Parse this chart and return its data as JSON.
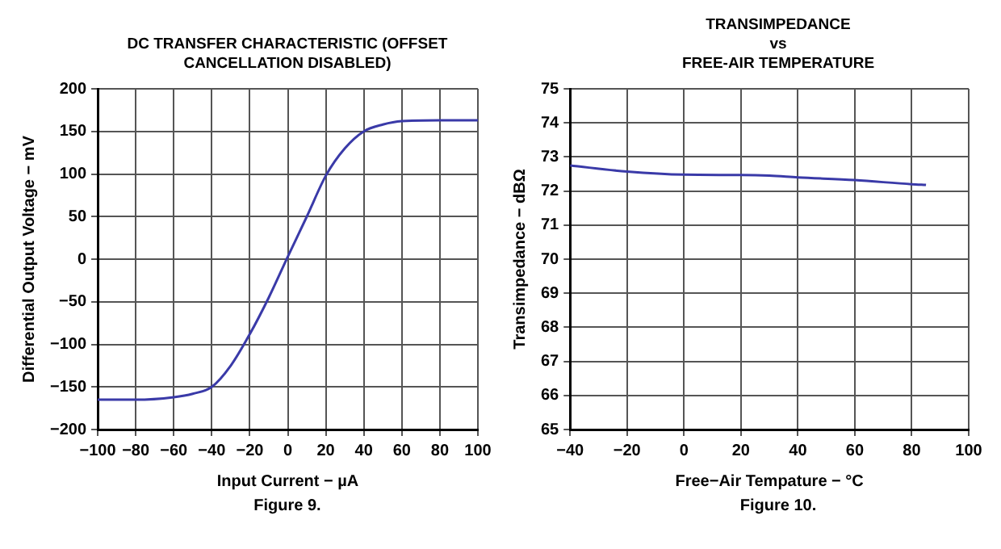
{
  "chart_data": [
    {
      "type": "line",
      "title": "DC TRANSFER CHARACTERISTIC (OFFSET CANCELLATION DISABLED)",
      "xlabel": "Input Current − µA",
      "ylabel": "Differential Output Voltage − mV",
      "x": [
        -100,
        -80,
        -60,
        -50,
        -40,
        -30,
        -20,
        -10,
        0,
        10,
        20,
        30,
        40,
        50,
        60,
        80,
        100
      ],
      "series": [
        {
          "color": "#3a3aa8",
          "values": [
            -165,
            -165,
            -162,
            -158,
            -150,
            -125,
            -88,
            -45,
            3,
            50,
            98,
            130,
            150,
            158,
            162,
            163,
            163
          ]
        }
      ],
      "xlim": [
        -100,
        100
      ],
      "xticks": [
        -100,
        -80,
        -60,
        -40,
        -20,
        0,
        20,
        40,
        60,
        80,
        100
      ],
      "ylim": [
        -200,
        200
      ],
      "yticks": [
        -200,
        -150,
        -100,
        -50,
        0,
        50,
        100,
        150,
        200
      ],
      "grid": true,
      "legend": false,
      "annotations": [
        "Figure 9."
      ]
    },
    {
      "type": "line",
      "title": "TRANSIMPEDANCE\nvs\nFREE-AIR TEMPERATURE",
      "xlabel": "Free−Air Tempature − °C",
      "ylabel": "Transimpedance − dBΩ",
      "x": [
        -40,
        -20,
        0,
        20,
        30,
        40,
        60,
        80,
        85
      ],
      "series": [
        {
          "color": "#3a3aa8",
          "values": [
            72.75,
            72.57,
            72.48,
            72.47,
            72.45,
            72.4,
            72.32,
            72.2,
            72.18
          ]
        }
      ],
      "xlim": [
        -40,
        100
      ],
      "xticks": [
        -40,
        -20,
        0,
        20,
        40,
        60,
        80,
        100
      ],
      "ylim": [
        65,
        75
      ],
      "yticks": [
        65,
        66,
        67,
        68,
        69,
        70,
        71,
        72,
        73,
        74,
        75
      ],
      "grid": true,
      "legend": false,
      "annotations": [
        "Figure 10."
      ]
    }
  ]
}
